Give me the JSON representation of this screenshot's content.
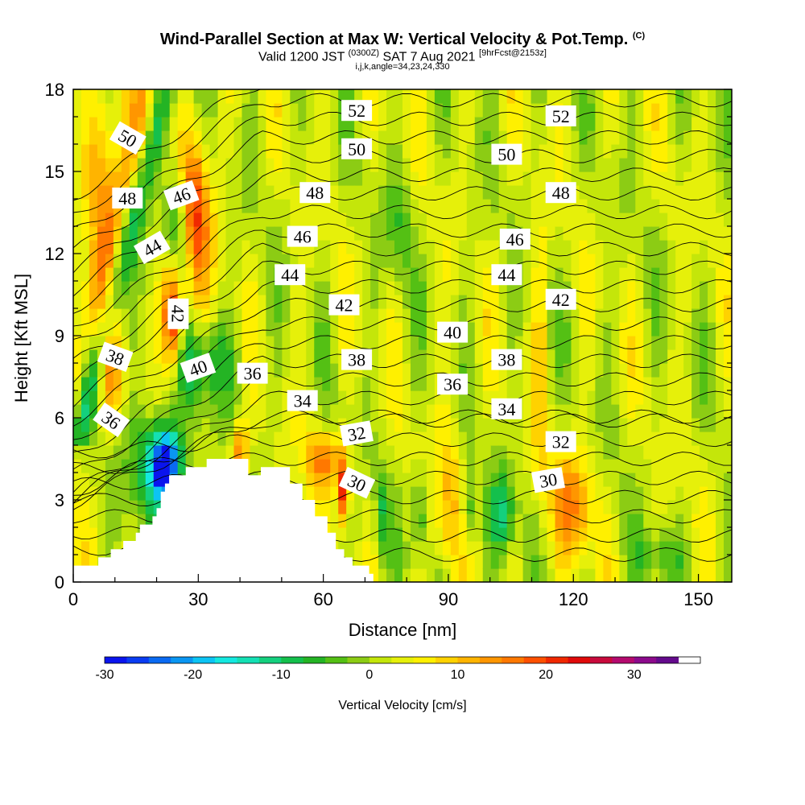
{
  "title": {
    "main": "Wind-Parallel Section at Max W: Vertical Velocity & Pot.Temp.",
    "copyright": "(C)",
    "valid_prefix": "Valid 1200 JST",
    "utc": "(0300Z)",
    "valid_date": "SAT 7 Aug 2021",
    "forecast": "[9hrFcst@2153z]",
    "indices": "i,j,k,angle=34,23,24,330"
  },
  "chart_data": {
    "type": "heatmap",
    "xlabel": "Distance [nm]",
    "ylabel": "Height [Kft MSL]",
    "xlim": [
      0,
      158
    ],
    "ylim": [
      0,
      18
    ],
    "x_ticks": [
      0,
      30,
      60,
      90,
      120,
      150
    ],
    "y_ticks": [
      0,
      3,
      6,
      9,
      12,
      15,
      18
    ],
    "grid": false,
    "colorbar": {
      "label": "Vertical Velocity [cm/s]",
      "min": -30,
      "max": 37.5,
      "step": 2.5,
      "ticks": [
        -30,
        -20,
        -10,
        0,
        10,
        20,
        30
      ],
      "colors": [
        "#0a14ee",
        "#0a3cf2",
        "#0a6af2",
        "#0a96f2",
        "#0cc4f4",
        "#14e8e0",
        "#14e0b4",
        "#14d07e",
        "#14c04c",
        "#24b424",
        "#54c014",
        "#8ccc14",
        "#c4e60a",
        "#e6f00a",
        "#fff000",
        "#ffd200",
        "#ffb400",
        "#ff9600",
        "#ff7800",
        "#ff5000",
        "#f02800",
        "#e00a0a",
        "#c80a3c",
        "#b40a6e",
        "#8c0a8c",
        "#640a8c"
      ]
    },
    "contour_field": "Potential Temperature",
    "contour_labels": [
      {
        "value": "52",
        "x": 68,
        "y": 17.2,
        "angle": 0
      },
      {
        "value": "52",
        "x": 117,
        "y": 17.0,
        "angle": 0
      },
      {
        "value": "50",
        "x": 13,
        "y": 16.2,
        "angle": 30
      },
      {
        "value": "50",
        "x": 68,
        "y": 15.8,
        "angle": 0
      },
      {
        "value": "50",
        "x": 104,
        "y": 15.6,
        "angle": 0
      },
      {
        "value": "48",
        "x": 13,
        "y": 14.0,
        "angle": 0
      },
      {
        "value": "48",
        "x": 58,
        "y": 14.2,
        "angle": 0
      },
      {
        "value": "48",
        "x": 117,
        "y": 14.2,
        "angle": 0
      },
      {
        "value": "46",
        "x": 26,
        "y": 14.1,
        "angle": -20
      },
      {
        "value": "46",
        "x": 55,
        "y": 12.6,
        "angle": 0
      },
      {
        "value": "46",
        "x": 106,
        "y": 12.5,
        "angle": 0
      },
      {
        "value": "44",
        "x": 19,
        "y": 12.2,
        "angle": -30
      },
      {
        "value": "44",
        "x": 52,
        "y": 11.2,
        "angle": 0
      },
      {
        "value": "44",
        "x": 104,
        "y": 11.2,
        "angle": 0
      },
      {
        "value": "42",
        "x": 25,
        "y": 9.8,
        "angle": 90
      },
      {
        "value": "42",
        "x": 65,
        "y": 10.1,
        "angle": 0
      },
      {
        "value": "42",
        "x": 117,
        "y": 10.3,
        "angle": 0
      },
      {
        "value": "40",
        "x": 91,
        "y": 9.1,
        "angle": 0
      },
      {
        "value": "40",
        "x": 30,
        "y": 7.8,
        "angle": -20
      },
      {
        "value": "38",
        "x": 10,
        "y": 8.2,
        "angle": 20
      },
      {
        "value": "38",
        "x": 68,
        "y": 8.1,
        "angle": 0
      },
      {
        "value": "38",
        "x": 104,
        "y": 8.1,
        "angle": 0
      },
      {
        "value": "36",
        "x": 43,
        "y": 7.6,
        "angle": 0
      },
      {
        "value": "36",
        "x": 91,
        "y": 7.2,
        "angle": 0
      },
      {
        "value": "36",
        "x": 9,
        "y": 5.9,
        "angle": 35
      },
      {
        "value": "34",
        "x": 55,
        "y": 6.6,
        "angle": 0
      },
      {
        "value": "34",
        "x": 104,
        "y": 6.3,
        "angle": 0
      },
      {
        "value": "32",
        "x": 68,
        "y": 5.4,
        "angle": -10
      },
      {
        "value": "32",
        "x": 117,
        "y": 5.1,
        "angle": 0
      },
      {
        "value": "30",
        "x": 68,
        "y": 3.6,
        "angle": 25
      },
      {
        "value": "30",
        "x": 114,
        "y": 3.7,
        "angle": -10
      }
    ],
    "terrain_profile": [
      [
        0,
        0.6
      ],
      [
        6,
        0.6
      ],
      [
        6,
        0.9
      ],
      [
        9,
        0.9
      ],
      [
        9,
        1.2
      ],
      [
        12,
        1.2
      ],
      [
        12,
        1.5
      ],
      [
        15,
        1.5
      ],
      [
        15,
        1.8
      ],
      [
        16,
        1.8
      ],
      [
        16,
        2.1
      ],
      [
        19,
        2.1
      ],
      [
        19,
        2.4
      ],
      [
        20,
        2.4
      ],
      [
        20,
        2.7
      ],
      [
        21,
        2.7
      ],
      [
        21,
        3.3
      ],
      [
        22,
        3.3
      ],
      [
        22,
        3.6
      ],
      [
        23,
        3.6
      ],
      [
        23,
        3.9
      ],
      [
        27,
        3.9
      ],
      [
        27,
        4.2
      ],
      [
        32,
        4.2
      ],
      [
        32,
        4.5
      ],
      [
        42,
        4.5
      ],
      [
        42,
        3.9
      ],
      [
        45,
        3.9
      ],
      [
        45,
        4.2
      ],
      [
        52,
        4.2
      ],
      [
        52,
        3.6
      ],
      [
        55,
        3.6
      ],
      [
        55,
        3.0
      ],
      [
        58,
        3.0
      ],
      [
        58,
        2.4
      ],
      [
        61,
        2.4
      ],
      [
        61,
        1.8
      ],
      [
        63,
        1.8
      ],
      [
        63,
        1.2
      ],
      [
        65,
        1.2
      ],
      [
        65,
        0.9
      ],
      [
        67,
        0.9
      ],
      [
        67,
        0.6
      ],
      [
        71,
        0.6
      ],
      [
        71,
        0.3
      ],
      [
        72,
        0.3
      ],
      [
        72,
        0.0
      ]
    ],
    "features": [
      {
        "w": -28,
        "x": 22,
        "y": 4.2,
        "sx": 3,
        "sy": 1.1
      },
      {
        "w": -14,
        "x": 21,
        "y": 4.3,
        "sx": 7,
        "sy": 2.0
      },
      {
        "w": -15,
        "x": 25,
        "y": 12.5,
        "sx": 3,
        "sy": 3
      },
      {
        "w": -10,
        "x": 30,
        "y": 8.0,
        "sx": 8,
        "sy": 1.5
      },
      {
        "w": 30,
        "x": 24,
        "y": 9.8,
        "sx": 2.5,
        "sy": 2.2
      },
      {
        "w": 18,
        "x": 29,
        "y": 13.5,
        "sx": 4,
        "sy": 3
      },
      {
        "w": 12,
        "x": 7,
        "y": 15,
        "sx": 4,
        "sy": 3
      },
      {
        "w": 10,
        "x": 9,
        "y": 7.5,
        "sx": 3,
        "sy": 2
      },
      {
        "w": 22,
        "x": 65,
        "y": 3.4,
        "sx": 1.2,
        "sy": 1.3
      },
      {
        "w": 14,
        "x": 60,
        "y": 4.5,
        "sx": 4,
        "sy": 1
      },
      {
        "w": 14,
        "x": 40,
        "y": 4.8,
        "sx": 2,
        "sy": 1
      },
      {
        "w": -10,
        "x": 83,
        "y": 2.5,
        "sx": 1.5,
        "sy": 1.5
      },
      {
        "w": -12,
        "x": 103,
        "y": 2.5,
        "sx": 3,
        "sy": 1.5
      },
      {
        "w": -8,
        "x": 95,
        "y": 2.5,
        "sx": 1.5,
        "sy": 1.5
      },
      {
        "w": -8,
        "x": 74,
        "y": 2.5,
        "sx": 1.5,
        "sy": 1.5
      },
      {
        "w": 12,
        "x": 120,
        "y": 2.8,
        "sx": 5,
        "sy": 2
      },
      {
        "w": 8,
        "x": 90,
        "y": 3,
        "sx": 3,
        "sy": 3
      },
      {
        "w": 6,
        "x": 112,
        "y": 8,
        "sx": 1.5,
        "sy": 6
      },
      {
        "w": -6,
        "x": 140,
        "y": 1,
        "sx": 6,
        "sy": 1
      },
      {
        "w": -6,
        "x": 78,
        "y": 13,
        "sx": 3,
        "sy": 2
      }
    ]
  }
}
